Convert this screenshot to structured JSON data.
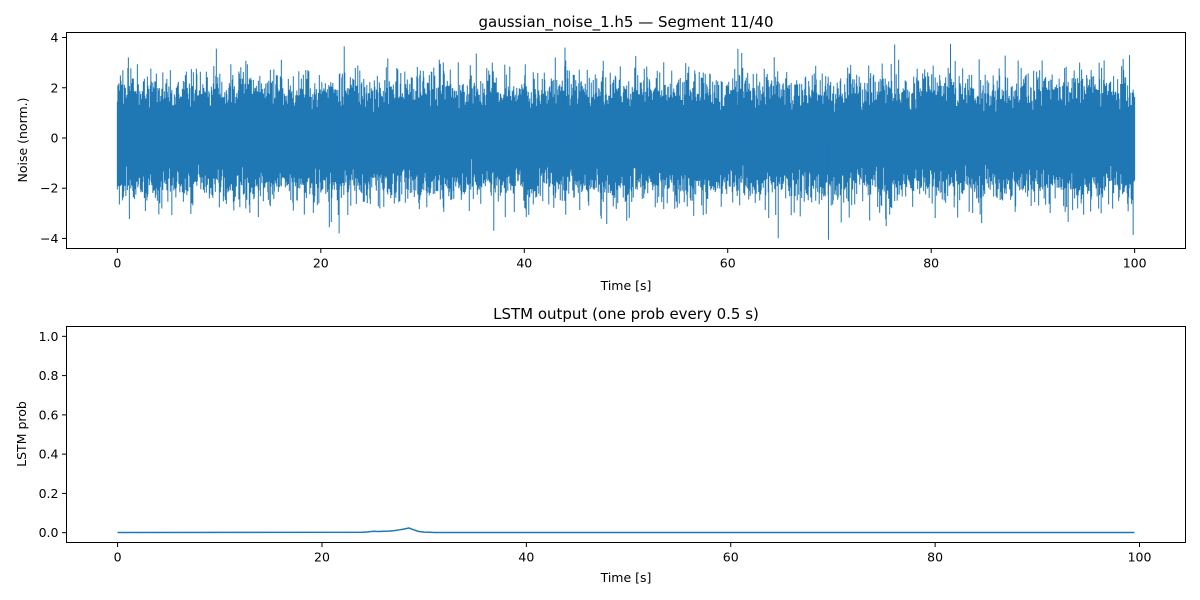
{
  "chart_data": [
    {
      "type": "line",
      "title": "gaussian_noise_1.h5 — Segment 11/40",
      "xlabel": "Time [s]",
      "ylabel": "Noise (norm.)",
      "xlim": [
        -5,
        105
      ],
      "ylim": [
        -4.4,
        4.2
      ],
      "xticks": [
        0,
        20,
        40,
        60,
        80,
        100
      ],
      "yticks": [
        -4,
        -2,
        0,
        2,
        4
      ],
      "xtick_labels": [
        "0",
        "20",
        "40",
        "60",
        "80",
        "100"
      ],
      "ytick_labels": [
        "−4",
        "−2",
        "0",
        "2",
        "4"
      ],
      "grid": false,
      "color": "#1f77b4",
      "series": [
        {
          "x_range": [
            0,
            100
          ],
          "distribution": "gaussian",
          "mean": 0,
          "std": 1,
          "observed_min": -4.05,
          "observed_max": 3.75,
          "notable_peaks": [
            {
              "x": 22.3,
              "y": 3.65
            },
            {
              "x": 21.8,
              "y": -3.8
            },
            {
              "x": 69.9,
              "y": -4.05
            },
            {
              "x": 81.9,
              "y": 3.75
            },
            {
              "x": 44.0,
              "y": 3.6
            },
            {
              "x": 61.0,
              "y": 3.55
            },
            {
              "x": 99.5,
              "y": 3.3
            }
          ]
        }
      ]
    },
    {
      "type": "line",
      "title": "LSTM output (one prob every 0.5 s)",
      "xlabel": "Time [s]",
      "ylabel": "LSTM prob",
      "xlim": [
        -5,
        104.5
      ],
      "ylim": [
        -0.05,
        1.05
      ],
      "xticks": [
        0,
        20,
        40,
        60,
        80,
        100
      ],
      "yticks": [
        0.0,
        0.2,
        0.4,
        0.6,
        0.8,
        1.0
      ],
      "xtick_labels": [
        "0",
        "20",
        "40",
        "60",
        "80",
        "100"
      ],
      "ytick_labels": [
        "0.0",
        "0.2",
        "0.4",
        "0.6",
        "0.8",
        "1.0"
      ],
      "grid": false,
      "color": "#1f77b4",
      "series": [
        {
          "x": [
            0,
            24,
            24.5,
            25,
            25.5,
            26,
            26.5,
            27,
            27.5,
            28,
            28.5,
            29,
            29.5,
            30,
            30.5,
            31,
            40,
            60,
            80,
            99.5
          ],
          "y": [
            0.001,
            0.002,
            0.004,
            0.007,
            0.006,
            0.007,
            0.008,
            0.01,
            0.014,
            0.018,
            0.024,
            0.014,
            0.006,
            0.003,
            0.002,
            0.001,
            0.001,
            0.001,
            0.001,
            0.001
          ]
        }
      ]
    }
  ]
}
